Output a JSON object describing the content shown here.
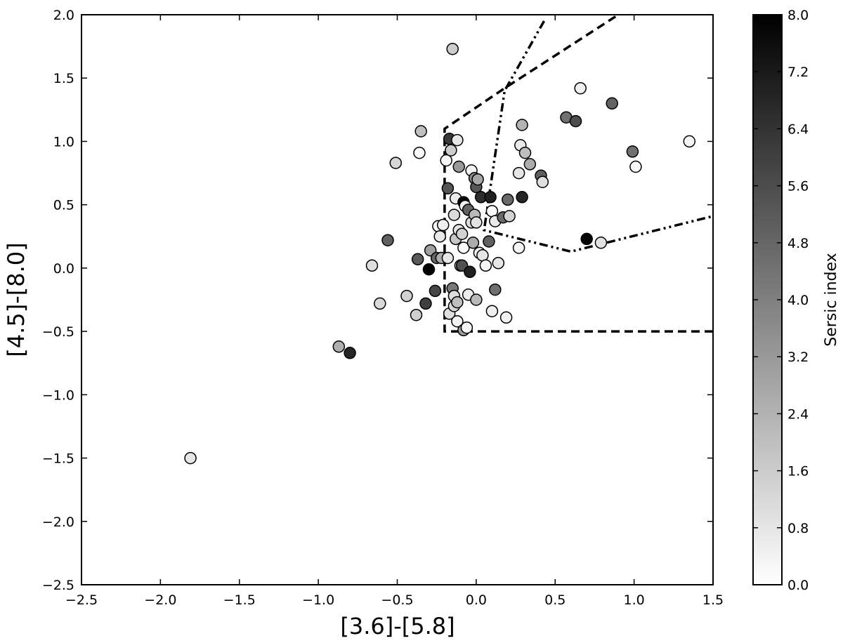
{
  "chart_data": {
    "type": "scatter",
    "xlabel": "[3.6]-[5.8]",
    "ylabel": "[4.5]-[8.0]",
    "xlim": [
      -2.5,
      1.5
    ],
    "ylim": [
      -2.5,
      2.0
    ],
    "xticks": [
      "−2.5",
      "−2.0",
      "−1.5",
      "−1.0",
      "−0.5",
      "0.0",
      "0.5",
      "1.0",
      "1.5"
    ],
    "yticks": [
      "−2.5",
      "−2.0",
      "−1.5",
      "−1.0",
      "−0.5",
      "0.0",
      "0.5",
      "1.0",
      "1.5",
      "2.0"
    ],
    "grid": false,
    "colorbar": {
      "label": "Sersic index",
      "range": [
        0.0,
        8.0
      ],
      "ticks": [
        "0.0",
        "0.8",
        "1.6",
        "2.4",
        "3.2",
        "4.0",
        "4.8",
        "5.6",
        "6.4",
        "7.2",
        "8.0"
      ],
      "colormap": "gray_r"
    },
    "points": [
      {
        "x": -1.81,
        "y": -1.5,
        "n": 0.8
      },
      {
        "x": -0.87,
        "y": -0.62,
        "n": 2.5
      },
      {
        "x": -0.8,
        "y": -0.67,
        "n": 6.8
      },
      {
        "x": -0.66,
        "y": 0.02,
        "n": 1.0
      },
      {
        "x": -0.61,
        "y": -0.28,
        "n": 1.2
      },
      {
        "x": -0.56,
        "y": 0.22,
        "n": 5.0
      },
      {
        "x": -0.51,
        "y": 0.83,
        "n": 1.3
      },
      {
        "x": -0.44,
        "y": -0.22,
        "n": 1.4
      },
      {
        "x": -0.38,
        "y": -0.37,
        "n": 1.5
      },
      {
        "x": -0.37,
        "y": 0.07,
        "n": 5.2
      },
      {
        "x": -0.36,
        "y": 0.91,
        "n": 0.2
      },
      {
        "x": -0.35,
        "y": 1.08,
        "n": 2.0
      },
      {
        "x": -0.32,
        "y": -0.28,
        "n": 6.0
      },
      {
        "x": -0.3,
        "y": -0.01,
        "n": 8.0
      },
      {
        "x": -0.29,
        "y": 0.14,
        "n": 3.0
      },
      {
        "x": -0.26,
        "y": -0.18,
        "n": 5.8
      },
      {
        "x": -0.25,
        "y": 0.08,
        "n": 4.8
      },
      {
        "x": -0.24,
        "y": 0.33,
        "n": 0.3
      },
      {
        "x": -0.23,
        "y": 0.25,
        "n": 0.7
      },
      {
        "x": -0.22,
        "y": 0.08,
        "n": 2.6
      },
      {
        "x": -0.21,
        "y": 0.34,
        "n": 0.5
      },
      {
        "x": -0.19,
        "y": 0.85,
        "n": 0.3
      },
      {
        "x": -0.18,
        "y": 0.08,
        "n": 0.8
      },
      {
        "x": -0.18,
        "y": 0.63,
        "n": 5.3
      },
      {
        "x": -0.17,
        "y": 1.02,
        "n": 6.2
      },
      {
        "x": -0.17,
        "y": -0.36,
        "n": 1.0
      },
      {
        "x": -0.16,
        "y": 0.93,
        "n": 1.6
      },
      {
        "x": -0.15,
        "y": 1.73,
        "n": 1.6
      },
      {
        "x": -0.15,
        "y": -0.16,
        "n": 4.2
      },
      {
        "x": -0.14,
        "y": -0.3,
        "n": 1.2
      },
      {
        "x": -0.14,
        "y": -0.22,
        "n": 1.0
      },
      {
        "x": -0.14,
        "y": 0.42,
        "n": 1.1
      },
      {
        "x": -0.13,
        "y": 0.23,
        "n": 1.8
      },
      {
        "x": -0.13,
        "y": 0.55,
        "n": 0.6
      },
      {
        "x": -0.12,
        "y": 1.01,
        "n": 0.8
      },
      {
        "x": -0.12,
        "y": -0.42,
        "n": 0.4
      },
      {
        "x": -0.12,
        "y": -0.27,
        "n": 2.0
      },
      {
        "x": -0.11,
        "y": 0.8,
        "n": 3.2
      },
      {
        "x": -0.11,
        "y": 0.3,
        "n": 0.9
      },
      {
        "x": -0.1,
        "y": 0.02,
        "n": 1.1
      },
      {
        "x": -0.09,
        "y": 0.27,
        "n": 1.4
      },
      {
        "x": -0.09,
        "y": 0.02,
        "n": 5.5
      },
      {
        "x": -0.08,
        "y": -0.49,
        "n": 3.0
      },
      {
        "x": -0.08,
        "y": 0.16,
        "n": 0.2
      },
      {
        "x": -0.08,
        "y": 0.52,
        "n": 7.8
      },
      {
        "x": -0.07,
        "y": 0.49,
        "n": 0.4
      },
      {
        "x": -0.06,
        "y": -0.47,
        "n": 0.3
      },
      {
        "x": -0.05,
        "y": 0.46,
        "n": 4.9
      },
      {
        "x": -0.05,
        "y": -0.21,
        "n": 0.6
      },
      {
        "x": -0.04,
        "y": -0.03,
        "n": 7.0
      },
      {
        "x": -0.03,
        "y": 0.77,
        "n": 0.4
      },
      {
        "x": -0.03,
        "y": 0.36,
        "n": 1.1
      },
      {
        "x": -0.02,
        "y": 0.2,
        "n": 2.6
      },
      {
        "x": -0.01,
        "y": 0.42,
        "n": 2.2
      },
      {
        "x": -0.01,
        "y": 0.71,
        "n": 3.7
      },
      {
        "x": 0.0,
        "y": 0.64,
        "n": 5.3
      },
      {
        "x": 0.0,
        "y": 0.36,
        "n": 0.9
      },
      {
        "x": 0.0,
        "y": -0.25,
        "n": 2.2
      },
      {
        "x": 0.01,
        "y": 0.7,
        "n": 2.8
      },
      {
        "x": 0.02,
        "y": 0.12,
        "n": 0.5
      },
      {
        "x": 0.03,
        "y": 0.56,
        "n": 6.6
      },
      {
        "x": 0.04,
        "y": 0.1,
        "n": 0.8
      },
      {
        "x": 0.06,
        "y": 0.02,
        "n": 0.3
      },
      {
        "x": 0.08,
        "y": 0.21,
        "n": 5.0
      },
      {
        "x": 0.09,
        "y": 0.56,
        "n": 7.0
      },
      {
        "x": 0.1,
        "y": -0.34,
        "n": 0.5
      },
      {
        "x": 0.1,
        "y": 0.45,
        "n": 0.2
      },
      {
        "x": 0.12,
        "y": 0.37,
        "n": 0.7
      },
      {
        "x": 0.12,
        "y": -0.17,
        "n": 4.5
      },
      {
        "x": 0.14,
        "y": 0.04,
        "n": 0.8
      },
      {
        "x": 0.17,
        "y": 0.4,
        "n": 4.7
      },
      {
        "x": 0.19,
        "y": -0.39,
        "n": 0.4
      },
      {
        "x": 0.2,
        "y": 0.54,
        "n": 4.7
      },
      {
        "x": 0.21,
        "y": 0.41,
        "n": 1.4
      },
      {
        "x": 0.27,
        "y": 0.16,
        "n": 0.3
      },
      {
        "x": 0.27,
        "y": 0.75,
        "n": 0.8
      },
      {
        "x": 0.28,
        "y": 0.97,
        "n": 0.7
      },
      {
        "x": 0.29,
        "y": 1.13,
        "n": 2.4
      },
      {
        "x": 0.29,
        "y": 0.56,
        "n": 6.8
      },
      {
        "x": 0.31,
        "y": 0.91,
        "n": 2.0
      },
      {
        "x": 0.34,
        "y": 0.82,
        "n": 2.6
      },
      {
        "x": 0.41,
        "y": 0.73,
        "n": 5.0
      },
      {
        "x": 0.42,
        "y": 0.68,
        "n": 1.0
      },
      {
        "x": 0.57,
        "y": 1.19,
        "n": 4.5
      },
      {
        "x": 0.63,
        "y": 1.16,
        "n": 5.6
      },
      {
        "x": 0.66,
        "y": 1.42,
        "n": 0.5
      },
      {
        "x": 0.7,
        "y": 0.23,
        "n": 7.8
      },
      {
        "x": 0.79,
        "y": 0.2,
        "n": 0.9
      },
      {
        "x": 0.86,
        "y": 1.3,
        "n": 4.9
      },
      {
        "x": 0.99,
        "y": 0.92,
        "n": 4.5
      },
      {
        "x": 1.01,
        "y": 0.8,
        "n": 0.2
      },
      {
        "x": 1.35,
        "y": 1.0,
        "n": 0.3
      }
    ],
    "region_dashed": {
      "style": "dashed",
      "x": [
        1.5,
        -0.2,
        -0.2,
        0.18,
        0.9
      ],
      "y": [
        -0.5,
        -0.5,
        1.1,
        1.42,
        2.0
      ]
    },
    "region_dashdot": {
      "style": "dash-dot",
      "x": [
        0.43,
        0.18,
        0.05,
        0.6,
        1.5
      ],
      "y": [
        1.95,
        1.4,
        0.3,
        0.13,
        0.41
      ]
    }
  }
}
